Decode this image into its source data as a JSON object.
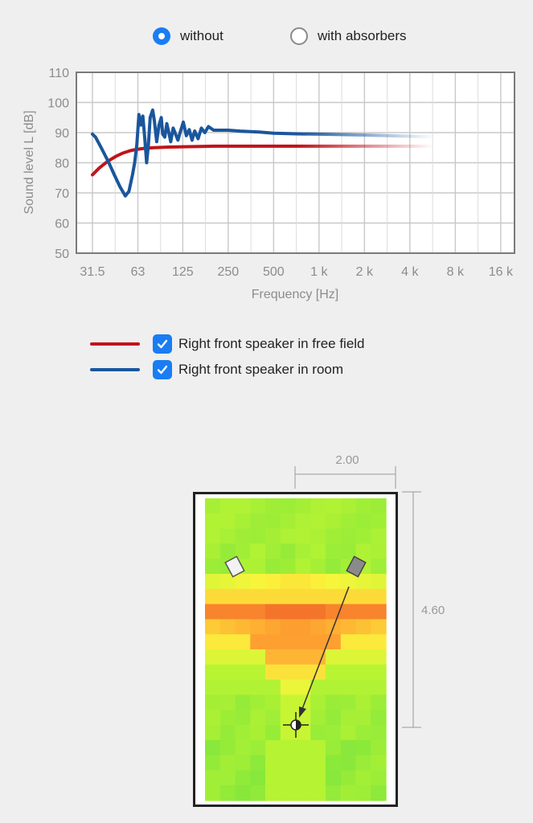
{
  "options": {
    "without_label": "without",
    "with_absorbers_label": "with absorbers",
    "selected": "without"
  },
  "chart_data": {
    "type": "line",
    "xlabel": "Frequency [Hz]",
    "ylabel": "Sound level L [dB]",
    "x_scale": "log",
    "x_ticks": [
      "31.5",
      "63",
      "125",
      "250",
      "500",
      "1 k",
      "2 k",
      "4 k",
      "8 k",
      "16 k"
    ],
    "x_tick_values": [
      31.5,
      63,
      125,
      250,
      500,
      1000,
      2000,
      4000,
      8000,
      16000
    ],
    "y_ticks": [
      "110",
      "100",
      "90",
      "80",
      "70",
      "60",
      "50"
    ],
    "ylim": [
      50,
      110
    ],
    "xlim": [
      25,
      20000
    ],
    "grid": true,
    "series": [
      {
        "name": "Right front speaker in free field",
        "color": "#c0141a",
        "x": [
          31.5,
          35,
          40,
          45,
          50,
          56,
          63,
          70,
          80,
          90,
          100,
          125,
          160,
          200,
          250,
          315,
          400,
          500,
          800,
          1000,
          2000,
          3000,
          4000,
          5000,
          6300
        ],
        "y": [
          76,
          78.3,
          80.6,
          82.1,
          83.2,
          84.0,
          84.5,
          84.8,
          85.0,
          85.1,
          85.2,
          85.3,
          85.4,
          85.5,
          85.5,
          85.5,
          85.5,
          85.5,
          85.5,
          85.5,
          85.5,
          85.5,
          85.5,
          85.5,
          85.5
        ]
      },
      {
        "name": "Right front speaker in room",
        "color": "#1a569c",
        "x": [
          31.5,
          33,
          36,
          40,
          44,
          48,
          52,
          55,
          58,
          60,
          62,
          64,
          66,
          68,
          70,
          72,
          74,
          76,
          79,
          81,
          84,
          87,
          90,
          92,
          95,
          98,
          101,
          104,
          108,
          112,
          116,
          120,
          126,
          132,
          138,
          144,
          150,
          158,
          166,
          175,
          185,
          200,
          250,
          300,
          400,
          500,
          700,
          1000,
          2000,
          4000,
          6000
        ],
        "y": [
          89.5,
          88.5,
          85,
          80.5,
          76,
          72,
          69,
          70.5,
          76,
          80,
          86,
          96,
          92.5,
          95.5,
          88,
          80,
          86,
          95,
          97.5,
          94,
          87,
          92.5,
          95,
          89.5,
          88.5,
          93,
          90,
          87,
          91.5,
          89.5,
          87.5,
          90,
          93.5,
          89,
          91,
          87.5,
          90.5,
          88,
          91.5,
          90,
          92,
          90.8,
          90.8,
          90.5,
          90.2,
          89.8,
          89.6,
          89.5,
          89.2,
          88.8,
          88.6
        ]
      }
    ]
  },
  "legend": [
    {
      "label": "Right front speaker in free field",
      "color": "#c0141a",
      "checked": true
    },
    {
      "label": "Right front speaker in room",
      "color": "#1a569c",
      "checked": true
    }
  ],
  "room": {
    "width_label": "2.00",
    "height_label": "4.60"
  }
}
